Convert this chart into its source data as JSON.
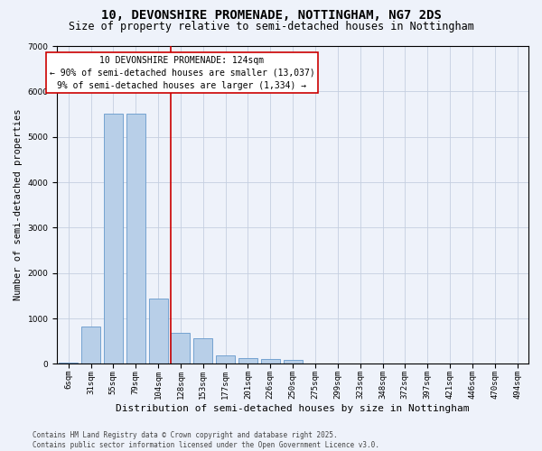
{
  "title1": "10, DEVONSHIRE PROMENADE, NOTTINGHAM, NG7 2DS",
  "title2": "Size of property relative to semi-detached houses in Nottingham",
  "xlabel": "Distribution of semi-detached houses by size in Nottingham",
  "ylabel": "Number of semi-detached properties",
  "categories": [
    "6sqm",
    "31sqm",
    "55sqm",
    "79sqm",
    "104sqm",
    "128sqm",
    "153sqm",
    "177sqm",
    "201sqm",
    "226sqm",
    "250sqm",
    "275sqm",
    "299sqm",
    "323sqm",
    "348sqm",
    "372sqm",
    "397sqm",
    "421sqm",
    "446sqm",
    "470sqm",
    "494sqm"
  ],
  "values": [
    25,
    820,
    5520,
    5520,
    1430,
    680,
    560,
    195,
    130,
    105,
    95,
    0,
    0,
    0,
    0,
    0,
    0,
    0,
    0,
    0,
    0
  ],
  "bar_color": "#b8cfe8",
  "bar_edge_color": "#6699cc",
  "background_color": "#eef2fa",
  "grid_color": "#c5cfe0",
  "annotation_line1": "10 DEVONSHIRE PROMENADE: 124sqm",
  "annotation_line2": "← 90% of semi-detached houses are smaller (13,037)",
  "annotation_line3": "9% of semi-detached houses are larger (1,334) →",
  "annotation_box_color": "#ffffff",
  "annotation_box_edge_color": "#cc0000",
  "vline_x": 4.55,
  "vline_color": "#cc0000",
  "ylim": [
    0,
    7000
  ],
  "yticks": [
    0,
    1000,
    2000,
    3000,
    4000,
    5000,
    6000,
    7000
  ],
  "footer": "Contains HM Land Registry data © Crown copyright and database right 2025.\nContains public sector information licensed under the Open Government Licence v3.0.",
  "title1_fontsize": 10,
  "title2_fontsize": 8.5,
  "xlabel_fontsize": 8,
  "ylabel_fontsize": 7.5,
  "tick_fontsize": 6.5,
  "annotation_fontsize": 7,
  "footer_fontsize": 5.5
}
